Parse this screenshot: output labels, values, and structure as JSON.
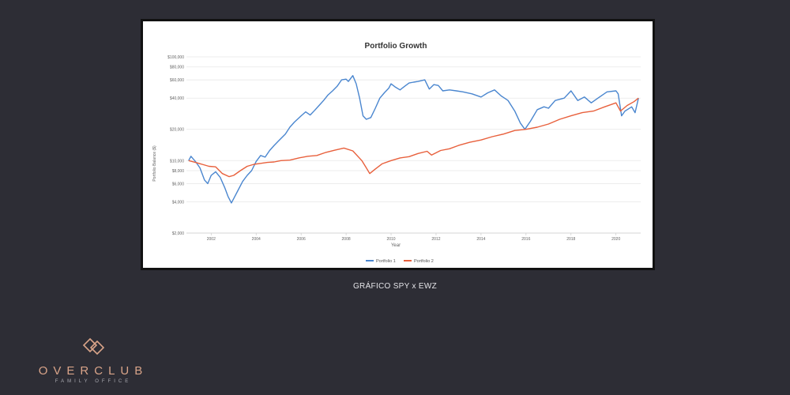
{
  "caption": "GRÁFICO SPY x EWZ",
  "brand": {
    "name": "OVERCLUB",
    "tagline": "FAMILY OFFICE",
    "color": "#d9a489"
  },
  "chart_data": {
    "type": "line",
    "title": "Portfolio Growth",
    "xlabel": "Year",
    "ylabel": "Portfolio Balance ($)",
    "y_scale": "log",
    "ylim": [
      2000,
      100000
    ],
    "xlim": [
      2000.9,
      2021.1
    ],
    "y_ticks": [
      {
        "value": 100000,
        "label": "$100,000"
      },
      {
        "value": 80000,
        "label": "$80,000"
      },
      {
        "value": 60000,
        "label": "$60,000"
      },
      {
        "value": 40000,
        "label": "$40,000"
      },
      {
        "value": 20000,
        "label": "$20,000"
      },
      {
        "value": 10000,
        "label": "$10,000"
      },
      {
        "value": 8000,
        "label": "$8,000"
      },
      {
        "value": 6000,
        "label": "$6,000"
      },
      {
        "value": 4000,
        "label": "$4,000"
      },
      {
        "value": 2000,
        "label": "$2,000"
      }
    ],
    "x_ticks": [
      2002,
      2004,
      2006,
      2008,
      2010,
      2012,
      2014,
      2016,
      2018,
      2020
    ],
    "grid": true,
    "legend_position": "bottom",
    "series": [
      {
        "name": "Portfolio 1",
        "color": "#4a86cf",
        "points": [
          [
            2001.0,
            10000
          ],
          [
            2001.1,
            11000
          ],
          [
            2001.3,
            9800
          ],
          [
            2001.5,
            8500
          ],
          [
            2001.7,
            6500
          ],
          [
            2001.85,
            6000
          ],
          [
            2002.0,
            7200
          ],
          [
            2002.2,
            7800
          ],
          [
            2002.4,
            6900
          ],
          [
            2002.6,
            5500
          ],
          [
            2002.75,
            4500
          ],
          [
            2002.9,
            3900
          ],
          [
            2003.0,
            4300
          ],
          [
            2003.2,
            5200
          ],
          [
            2003.4,
            6300
          ],
          [
            2003.6,
            7200
          ],
          [
            2003.8,
            8000
          ],
          [
            2004.0,
            9800
          ],
          [
            2004.2,
            11200
          ],
          [
            2004.4,
            10800
          ],
          [
            2004.6,
            12500
          ],
          [
            2004.8,
            14000
          ],
          [
            2005.0,
            15500
          ],
          [
            2005.3,
            18000
          ],
          [
            2005.5,
            21000
          ],
          [
            2005.7,
            23500
          ],
          [
            2006.0,
            27000
          ],
          [
            2006.2,
            29500
          ],
          [
            2006.4,
            27500
          ],
          [
            2006.6,
            30500
          ],
          [
            2006.8,
            34000
          ],
          [
            2007.0,
            38000
          ],
          [
            2007.2,
            43000
          ],
          [
            2007.4,
            47000
          ],
          [
            2007.6,
            52000
          ],
          [
            2007.8,
            60000
          ],
          [
            2008.0,
            61000
          ],
          [
            2008.1,
            58000
          ],
          [
            2008.3,
            66000
          ],
          [
            2008.45,
            55000
          ],
          [
            2008.6,
            40000
          ],
          [
            2008.75,
            27000
          ],
          [
            2008.9,
            25000
          ],
          [
            2009.1,
            26000
          ],
          [
            2009.3,
            32000
          ],
          [
            2009.5,
            40000
          ],
          [
            2009.7,
            45000
          ],
          [
            2009.9,
            50000
          ],
          [
            2010.0,
            55000
          ],
          [
            2010.2,
            51000
          ],
          [
            2010.4,
            48000
          ],
          [
            2010.6,
            52000
          ],
          [
            2010.8,
            56000
          ],
          [
            2011.0,
            57000
          ],
          [
            2011.2,
            58000
          ],
          [
            2011.5,
            60000
          ],
          [
            2011.7,
            49000
          ],
          [
            2011.9,
            54000
          ],
          [
            2012.1,
            53000
          ],
          [
            2012.3,
            47000
          ],
          [
            2012.6,
            48000
          ],
          [
            2012.9,
            47000
          ],
          [
            2013.2,
            46000
          ],
          [
            2013.6,
            44000
          ],
          [
            2014.0,
            41000
          ],
          [
            2014.3,
            45000
          ],
          [
            2014.6,
            48000
          ],
          [
            2014.9,
            42000
          ],
          [
            2015.2,
            38000
          ],
          [
            2015.5,
            30000
          ],
          [
            2015.75,
            23000
          ],
          [
            2015.95,
            20000
          ],
          [
            2016.2,
            24000
          ],
          [
            2016.5,
            31000
          ],
          [
            2016.8,
            33000
          ],
          [
            2017.0,
            32000
          ],
          [
            2017.3,
            38000
          ],
          [
            2017.7,
            40000
          ],
          [
            2018.0,
            47000
          ],
          [
            2018.3,
            38000
          ],
          [
            2018.6,
            41000
          ],
          [
            2018.9,
            36000
          ],
          [
            2019.2,
            40000
          ],
          [
            2019.6,
            46000
          ],
          [
            2020.0,
            47000
          ],
          [
            2020.1,
            44000
          ],
          [
            2020.25,
            27000
          ],
          [
            2020.4,
            30000
          ],
          [
            2020.7,
            33000
          ],
          [
            2020.85,
            29000
          ],
          [
            2021.0,
            40000
          ]
        ]
      },
      {
        "name": "Portfolio 2",
        "color": "#e8603c",
        "points": [
          [
            2001.0,
            10000
          ],
          [
            2001.3,
            9600
          ],
          [
            2001.6,
            9200
          ],
          [
            2001.9,
            8800
          ],
          [
            2002.2,
            8700
          ],
          [
            2002.5,
            7500
          ],
          [
            2002.8,
            7000
          ],
          [
            2003.0,
            7200
          ],
          [
            2003.3,
            8000
          ],
          [
            2003.6,
            8800
          ],
          [
            2003.9,
            9200
          ],
          [
            2004.2,
            9400
          ],
          [
            2004.5,
            9600
          ],
          [
            2004.8,
            9700
          ],
          [
            2005.1,
            10000
          ],
          [
            2005.5,
            10100
          ],
          [
            2005.9,
            10600
          ],
          [
            2006.3,
            11000
          ],
          [
            2006.7,
            11200
          ],
          [
            2007.1,
            12000
          ],
          [
            2007.5,
            12600
          ],
          [
            2007.9,
            13200
          ],
          [
            2008.3,
            12400
          ],
          [
            2008.7,
            10000
          ],
          [
            2008.9,
            8500
          ],
          [
            2009.05,
            7500
          ],
          [
            2009.3,
            8300
          ],
          [
            2009.6,
            9300
          ],
          [
            2010.0,
            10000
          ],
          [
            2010.4,
            10600
          ],
          [
            2010.8,
            10900
          ],
          [
            2011.2,
            11700
          ],
          [
            2011.6,
            12300
          ],
          [
            2011.8,
            11300
          ],
          [
            2012.2,
            12500
          ],
          [
            2012.6,
            13000
          ],
          [
            2013.0,
            14000
          ],
          [
            2013.5,
            15000
          ],
          [
            2014.0,
            15800
          ],
          [
            2014.5,
            17000
          ],
          [
            2015.0,
            18000
          ],
          [
            2015.5,
            19500
          ],
          [
            2016.0,
            20000
          ],
          [
            2016.5,
            21000
          ],
          [
            2017.0,
            22500
          ],
          [
            2017.5,
            25000
          ],
          [
            2018.0,
            27000
          ],
          [
            2018.5,
            29000
          ],
          [
            2019.0,
            30000
          ],
          [
            2019.5,
            33000
          ],
          [
            2020.0,
            36000
          ],
          [
            2020.2,
            30000
          ],
          [
            2020.5,
            34000
          ],
          [
            2020.8,
            37000
          ],
          [
            2021.0,
            40000
          ]
        ]
      }
    ]
  }
}
